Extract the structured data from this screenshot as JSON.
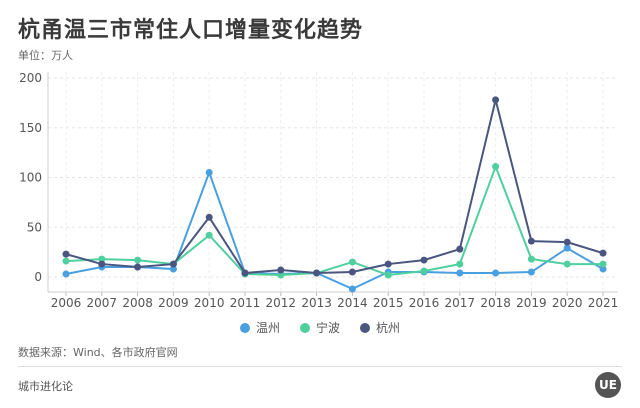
{
  "header": {
    "title": "杭甬温三市常住人口增量变化趋势",
    "unit": "单位：万人"
  },
  "chart_data": {
    "type": "line",
    "title": "杭甬温三市常住人口增量变化趋势",
    "ylabel": "单位：万人",
    "xlabel": "",
    "ylim": [
      -20,
      200
    ],
    "yticks": [
      0,
      50,
      100,
      150,
      200
    ],
    "grid": true,
    "legend_position": "bottom",
    "categories": [
      "2006",
      "2007",
      "2008",
      "2009",
      "2010",
      "2011",
      "2012",
      "2013",
      "2014",
      "2015",
      "2016",
      "2017",
      "2018",
      "2019",
      "2020",
      "2021"
    ],
    "series": [
      {
        "name": "温州",
        "color": "#4a9fe0",
        "values": [
          3,
          10,
          10,
          8,
          105,
          4,
          3,
          4,
          -12,
          5,
          5,
          4,
          4,
          5,
          29,
          8
        ]
      },
      {
        "name": "宁波",
        "color": "#4fcf9e",
        "values": [
          16,
          18,
          17,
          13,
          42,
          3,
          2,
          4,
          15,
          2,
          6,
          13,
          111,
          18,
          13,
          13
        ]
      },
      {
        "name": "杭州",
        "color": "#4a5680",
        "values": [
          23,
          13,
          10,
          13,
          60,
          4,
          7,
          4,
          5,
          13,
          17,
          28,
          178,
          36,
          35,
          24
        ]
      }
    ]
  },
  "legend": [
    {
      "label": "温州",
      "color": "#4a9fe0"
    },
    {
      "label": "宁波",
      "color": "#4fcf9e"
    },
    {
      "label": "杭州",
      "color": "#4a5680"
    }
  ],
  "footer": {
    "source": "数据来源：Wind、各市政府官网",
    "brand": "城市进化论",
    "logo_text": "UE"
  }
}
